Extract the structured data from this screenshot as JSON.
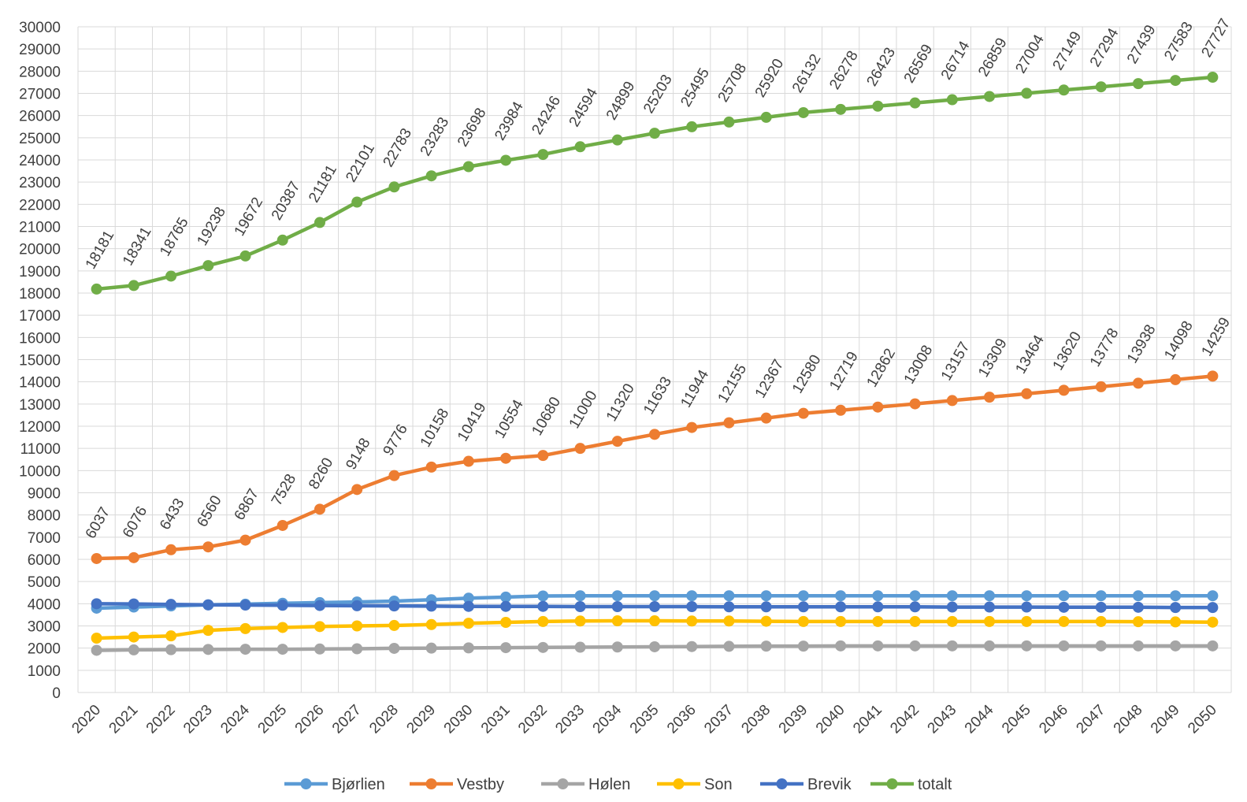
{
  "chart_data": {
    "type": "line",
    "title": "",
    "xlabel": "",
    "ylabel": "",
    "ylim": [
      0,
      30000
    ],
    "ytick_step": 1000,
    "grid": true,
    "legend_position": "bottom",
    "categories": [
      "2020",
      "2021",
      "2022",
      "2023",
      "2024",
      "2025",
      "2026",
      "2027",
      "2028",
      "2029",
      "2030",
      "2031",
      "2032",
      "2033",
      "2034",
      "2035",
      "2036",
      "2037",
      "2038",
      "2039",
      "2040",
      "2041",
      "2042",
      "2043",
      "2044",
      "2045",
      "2046",
      "2047",
      "2048",
      "2049",
      "2050"
    ],
    "series": [
      {
        "name": "Bjørlien",
        "color": "#5b9bd5",
        "show_labels": false,
        "values": [
          3800,
          3850,
          3900,
          3950,
          3980,
          4020,
          4050,
          4080,
          4120,
          4180,
          4250,
          4300,
          4350,
          4360,
          4360,
          4360,
          4360,
          4360,
          4360,
          4360,
          4360,
          4360,
          4360,
          4360,
          4360,
          4360,
          4360,
          4360,
          4360,
          4360,
          4360
        ]
      },
      {
        "name": "Vestby",
        "color": "#ed7d31",
        "show_labels": true,
        "values": [
          6037,
          6076,
          6433,
          6560,
          6867,
          7528,
          8260,
          9148,
          9776,
          10158,
          10419,
          10554,
          10680,
          11000,
          11320,
          11633,
          11944,
          12155,
          12367,
          12580,
          12719,
          12862,
          13008,
          13157,
          13309,
          13464,
          13620,
          13778,
          13938,
          14098,
          14259
        ]
      },
      {
        "name": "Hølen",
        "color": "#a5a5a5",
        "show_labels": false,
        "values": [
          1900,
          1920,
          1930,
          1940,
          1950,
          1950,
          1960,
          1970,
          1990,
          2000,
          2010,
          2020,
          2030,
          2040,
          2050,
          2060,
          2070,
          2080,
          2090,
          2090,
          2100,
          2100,
          2100,
          2100,
          2100,
          2100,
          2100,
          2100,
          2100,
          2100,
          2100
        ]
      },
      {
        "name": "Son",
        "color": "#ffc000",
        "show_labels": false,
        "values": [
          2450,
          2500,
          2550,
          2800,
          2880,
          2930,
          2970,
          3000,
          3020,
          3060,
          3120,
          3160,
          3200,
          3220,
          3230,
          3230,
          3220,
          3220,
          3210,
          3200,
          3200,
          3200,
          3200,
          3200,
          3200,
          3200,
          3200,
          3200,
          3190,
          3180,
          3170
        ]
      },
      {
        "name": "Brevik",
        "color": "#4472c4",
        "show_labels": false,
        "values": [
          4000,
          3990,
          3970,
          3950,
          3940,
          3930,
          3920,
          3910,
          3900,
          3890,
          3880,
          3880,
          3880,
          3870,
          3870,
          3870,
          3870,
          3860,
          3860,
          3860,
          3860,
          3860,
          3860,
          3850,
          3850,
          3850,
          3840,
          3840,
          3840,
          3830,
          3830
        ]
      },
      {
        "name": "totalt",
        "color": "#70ad47",
        "show_labels": true,
        "values": [
          18181,
          18341,
          18765,
          19238,
          19672,
          20387,
          21181,
          22101,
          22783,
          23283,
          23698,
          23984,
          24246,
          24594,
          24899,
          25203,
          25495,
          25708,
          25920,
          26132,
          26278,
          26423,
          26569,
          26714,
          26859,
          27004,
          27149,
          27294,
          27439,
          27583,
          27727
        ]
      }
    ]
  }
}
